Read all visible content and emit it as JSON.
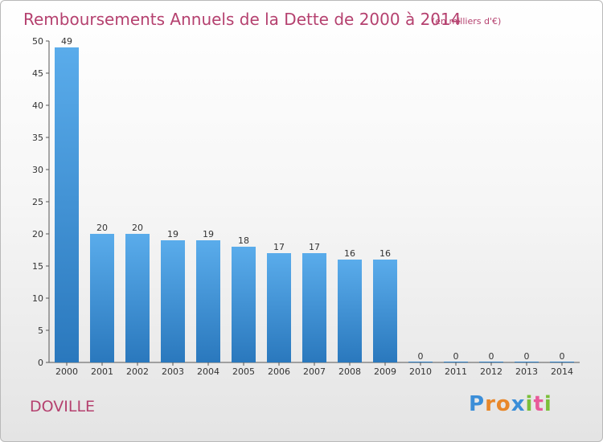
{
  "chart_data": {
    "type": "bar",
    "title": "Remboursements Annuels de la Dette de 2000 à 2014",
    "subtitle": "(en milliers d'€)",
    "categories": [
      "2000",
      "2001",
      "2002",
      "2003",
      "2004",
      "2005",
      "2006",
      "2007",
      "2008",
      "2009",
      "2010",
      "2011",
      "2012",
      "2013",
      "2014"
    ],
    "values": [
      49,
      20,
      20,
      19,
      19,
      18,
      17,
      17,
      16,
      16,
      0,
      0,
      0,
      0,
      0
    ],
    "ylim": [
      0,
      50
    ],
    "yticks": [
      0,
      5,
      10,
      15,
      20,
      25,
      30,
      35,
      40,
      45,
      50
    ],
    "grid": false,
    "bar_color": "#4a9fe0",
    "bar_color_dark": "#2f7fc4"
  },
  "commune": "DOVILLE",
  "logo": {
    "letters": [
      "P",
      "r",
      "o",
      "x",
      "i",
      "t",
      "i"
    ],
    "colors": [
      "#3b8ed8",
      "#e8872a",
      "#e8872a",
      "#3b8ed8",
      "#7bbf3a",
      "#e85a9a",
      "#7bbf3a"
    ]
  }
}
